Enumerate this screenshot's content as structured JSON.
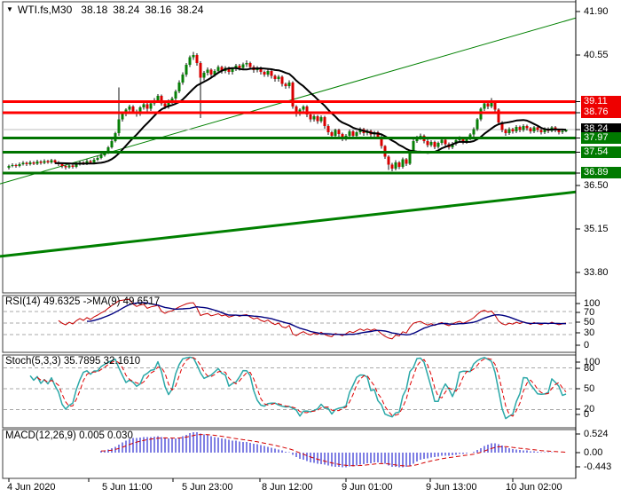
{
  "header": {
    "dropdown_icon": "▼",
    "symbol_period": "WTI.fs,M30",
    "open": "38.18",
    "high": "38.24",
    "low": "38.16",
    "close": "38.24"
  },
  "colors": {
    "bull": "#077f07",
    "bear": "#d90000",
    "wick": "#101010",
    "ma": "#000000",
    "resistance": "#ff0000",
    "support": "#007400",
    "trend": "#008000",
    "current_line": "#bcbcbc",
    "grid": "#a9a9a9",
    "rsi_line": "#c80000",
    "rsi_ma": "#00007f",
    "stoch_k": "#2ba8a8",
    "stoch_d": "#e00000",
    "macd_hist": "#0000c8",
    "macd_signal": "#d40000",
    "tag_current_bg": "#000000",
    "tag_res_bg": "#ee0000",
    "tag_sup_bg": "#007a00",
    "border": "#3c3c3c",
    "text": "#000000"
  },
  "chart_data": {
    "type": "candlestick+indicators",
    "symbol": "WTI.fs",
    "period": "M30",
    "price_axis_ticks": [
      "41.90",
      "40.55",
      "36.50",
      "35.15",
      "33.80"
    ],
    "price_axis_tick_values": [
      41.9,
      40.55,
      36.5,
      35.15,
      33.8
    ],
    "price_tags": [
      {
        "text": "39.11",
        "value": 39.11,
        "kind": "resistance"
      },
      {
        "text": "38.76",
        "value": 38.76,
        "kind": "resistance"
      },
      {
        "text": "38.24",
        "value": 38.24,
        "kind": "current"
      },
      {
        "text": "37.97",
        "value": 37.97,
        "kind": "support"
      },
      {
        "text": "37.54",
        "value": 37.54,
        "kind": "support"
      },
      {
        "text": "36.89",
        "value": 36.89,
        "kind": "support"
      }
    ],
    "h_lines": [
      {
        "value": 39.11,
        "kind": "resistance"
      },
      {
        "value": 38.76,
        "kind": "resistance"
      },
      {
        "value": 38.24,
        "kind": "current"
      },
      {
        "value": 37.97,
        "kind": "support"
      },
      {
        "value": 37.54,
        "kind": "support"
      },
      {
        "value": 36.89,
        "kind": "support"
      }
    ],
    "trend_lines": [
      {
        "price_start": 36.55,
        "price_end": 41.7,
        "width": 1
      },
      {
        "price_start": 34.3,
        "price_end": 36.3,
        "width": 3
      }
    ],
    "ma_period": 14,
    "time_labels": [
      "4 Jun 2020",
      "5 Jun 11:00",
      "5 Jun 23:00",
      "8 Jun 12:00",
      "9 Jun 01:00",
      "9 Jun 13:00",
      "10 Jun 02:00"
    ],
    "indicators": {
      "rsi": {
        "label": "RSI(14) 49.6325  ->MA(9) 49.6517",
        "period": 14,
        "ma_period": 9,
        "axis_ticks": [
          "100",
          "70",
          "50",
          "30",
          "0"
        ],
        "grid_levels": [
          70,
          50,
          30
        ],
        "value": 49.6325,
        "ma_value": 49.6517
      },
      "stoch": {
        "label": "Stoch(5,3,3) 35.7895 32.1610",
        "k": 5,
        "slowing": 3,
        "d": 3,
        "axis_ticks": [
          "100",
          "80",
          "50",
          "20",
          "0"
        ],
        "grid_levels": [
          80,
          50,
          20
        ],
        "k_value": 35.7895,
        "d_value": 32.161
      },
      "macd": {
        "label": "MACD(12,26,9) 0.005 0.030",
        "fast": 12,
        "slow": 26,
        "signal": 9,
        "axis_ticks": [
          "0.524",
          "0.00",
          "-0.443"
        ],
        "axis_tick_values": [
          0.524,
          0.0,
          -0.443
        ]
      }
    },
    "candles": [
      [
        37.05,
        37.15,
        37.0,
        37.1
      ],
      [
        37.1,
        37.19,
        37.06,
        37.14
      ],
      [
        37.14,
        37.18,
        37.05,
        37.1
      ],
      [
        37.1,
        37.21,
        37.06,
        37.16
      ],
      [
        37.16,
        37.26,
        37.12,
        37.2
      ],
      [
        37.2,
        37.24,
        37.11,
        37.16
      ],
      [
        37.16,
        37.27,
        37.12,
        37.22
      ],
      [
        37.22,
        37.26,
        37.13,
        37.18
      ],
      [
        37.18,
        37.3,
        37.14,
        37.24
      ],
      [
        37.24,
        37.28,
        37.15,
        37.2
      ],
      [
        37.2,
        37.31,
        37.16,
        37.26
      ],
      [
        37.26,
        37.3,
        37.17,
        37.22
      ],
      [
        37.22,
        37.33,
        37.18,
        37.28
      ],
      [
        37.28,
        37.31,
        37.17,
        37.22
      ],
      [
        37.22,
        37.26,
        37.11,
        37.16
      ],
      [
        37.16,
        37.2,
        37.04,
        37.1
      ],
      [
        37.1,
        37.15,
        37.0,
        37.06
      ],
      [
        37.06,
        37.17,
        37.02,
        37.12
      ],
      [
        37.12,
        37.16,
        37.03,
        37.08
      ],
      [
        37.08,
        37.21,
        37.04,
        37.16
      ],
      [
        37.16,
        37.27,
        37.12,
        37.22
      ],
      [
        37.22,
        37.26,
        37.13,
        37.18
      ],
      [
        37.18,
        37.31,
        37.14,
        37.26
      ],
      [
        37.26,
        37.3,
        37.16,
        37.22
      ],
      [
        37.22,
        37.35,
        37.18,
        37.3
      ],
      [
        37.3,
        37.41,
        37.26,
        37.36
      ],
      [
        37.36,
        37.49,
        37.32,
        37.44
      ],
      [
        37.44,
        37.57,
        37.4,
        37.52
      ],
      [
        37.52,
        37.73,
        37.48,
        37.68
      ],
      [
        37.68,
        37.93,
        37.64,
        37.88
      ],
      [
        37.88,
        38.17,
        37.84,
        38.12
      ],
      [
        38.12,
        39.55,
        38.05,
        38.55
      ],
      [
        38.55,
        38.78,
        38.48,
        38.72
      ],
      [
        38.72,
        38.9,
        38.65,
        38.85
      ],
      [
        38.85,
        39.01,
        38.78,
        38.95
      ],
      [
        38.95,
        38.99,
        38.73,
        38.8
      ],
      [
        38.8,
        38.86,
        38.64,
        38.72
      ],
      [
        38.72,
        38.97,
        38.66,
        38.92
      ],
      [
        38.92,
        39.08,
        38.85,
        39.02
      ],
      [
        39.02,
        39.07,
        38.8,
        38.88
      ],
      [
        38.88,
        39.1,
        38.82,
        39.05
      ],
      [
        39.05,
        39.21,
        38.98,
        39.15
      ],
      [
        39.15,
        39.34,
        39.08,
        39.28
      ],
      [
        39.28,
        39.33,
        38.98,
        39.05
      ],
      [
        39.05,
        39.1,
        38.87,
        38.95
      ],
      [
        38.95,
        39.17,
        38.88,
        39.12
      ],
      [
        39.12,
        39.26,
        39.04,
        39.2
      ],
      [
        39.2,
        39.47,
        39.14,
        39.42
      ],
      [
        39.42,
        39.76,
        39.36,
        39.7
      ],
      [
        39.7,
        40.01,
        39.63,
        39.95
      ],
      [
        39.95,
        40.3,
        39.88,
        40.25
      ],
      [
        40.25,
        40.54,
        40.18,
        40.48
      ],
      [
        40.48,
        40.65,
        40.4,
        40.55
      ],
      [
        40.55,
        40.6,
        40.22,
        40.3
      ],
      [
        40.3,
        40.36,
        38.6,
        39.85
      ],
      [
        39.85,
        40.06,
        39.76,
        40.0
      ],
      [
        40.0,
        40.16,
        39.92,
        40.1
      ],
      [
        40.1,
        40.14,
        39.88,
        39.95
      ],
      [
        39.95,
        40.11,
        39.88,
        40.05
      ],
      [
        40.05,
        40.24,
        39.98,
        40.18
      ],
      [
        40.18,
        40.22,
        39.97,
        40.05
      ],
      [
        40.05,
        40.21,
        39.98,
        40.15
      ],
      [
        40.15,
        40.19,
        39.95,
        40.02
      ],
      [
        40.02,
        40.17,
        39.95,
        40.12
      ],
      [
        40.12,
        40.28,
        40.05,
        40.22
      ],
      [
        40.22,
        40.27,
        40.07,
        40.15
      ],
      [
        40.15,
        40.31,
        40.08,
        40.26
      ],
      [
        40.26,
        40.38,
        40.18,
        40.3
      ],
      [
        40.3,
        40.34,
        40.1,
        40.18
      ],
      [
        40.18,
        40.23,
        40.0,
        40.08
      ],
      [
        40.08,
        40.21,
        40.01,
        40.15
      ],
      [
        40.15,
        40.19,
        39.94,
        40.02
      ],
      [
        40.02,
        40.07,
        39.87,
        39.95
      ],
      [
        39.95,
        40.1,
        39.88,
        40.05
      ],
      [
        40.05,
        40.09,
        39.82,
        39.9
      ],
      [
        39.9,
        39.95,
        39.72,
        39.8
      ],
      [
        39.8,
        39.93,
        39.73,
        39.88
      ],
      [
        39.88,
        39.92,
        39.57,
        39.65
      ],
      [
        39.65,
        39.7,
        39.5,
        39.58
      ],
      [
        39.58,
        39.76,
        39.52,
        39.7
      ],
      [
        39.7,
        39.74,
        38.88,
        38.95
      ],
      [
        38.95,
        39.0,
        38.64,
        38.72
      ],
      [
        38.72,
        38.9,
        38.66,
        38.85
      ],
      [
        38.85,
        39.0,
        38.78,
        38.95
      ],
      [
        38.95,
        38.99,
        38.62,
        38.7
      ],
      [
        38.7,
        38.75,
        38.47,
        38.55
      ],
      [
        38.55,
        38.7,
        38.48,
        38.65
      ],
      [
        38.65,
        38.69,
        38.42,
        38.5
      ],
      [
        38.5,
        38.67,
        38.44,
        38.62
      ],
      [
        38.62,
        38.66,
        38.27,
        38.35
      ],
      [
        38.35,
        38.4,
        38.07,
        38.15
      ],
      [
        38.15,
        38.2,
        37.97,
        38.05
      ],
      [
        38.05,
        38.27,
        37.99,
        38.22
      ],
      [
        38.22,
        38.26,
        38.02,
        38.1
      ],
      [
        38.1,
        38.14,
        37.88,
        37.95
      ],
      [
        37.95,
        38.1,
        37.89,
        38.05
      ],
      [
        38.05,
        38.23,
        37.99,
        38.18
      ],
      [
        38.18,
        38.22,
        37.98,
        38.05
      ],
      [
        38.05,
        38.2,
        37.99,
        38.15
      ],
      [
        38.15,
        38.3,
        38.09,
        38.25
      ],
      [
        38.25,
        38.29,
        38.05,
        38.12
      ],
      [
        38.12,
        38.25,
        38.06,
        38.2
      ],
      [
        38.2,
        38.24,
        38.01,
        38.08
      ],
      [
        38.08,
        38.2,
        38.02,
        38.15
      ],
      [
        38.15,
        38.19,
        37.95,
        38.02
      ],
      [
        38.02,
        38.06,
        37.65,
        37.72
      ],
      [
        37.72,
        37.76,
        37.33,
        37.4
      ],
      [
        37.4,
        37.44,
        36.98,
        37.15
      ],
      [
        37.15,
        37.2,
        36.94,
        37.02
      ],
      [
        37.02,
        37.28,
        36.97,
        37.22
      ],
      [
        37.22,
        37.26,
        37.01,
        37.08
      ],
      [
        37.08,
        37.37,
        37.03,
        37.32
      ],
      [
        37.32,
        37.36,
        37.11,
        37.18
      ],
      [
        37.18,
        37.6,
        37.13,
        37.55
      ],
      [
        37.55,
        37.93,
        37.5,
        37.88
      ],
      [
        37.88,
        38.04,
        37.82,
        37.98
      ],
      [
        37.98,
        38.11,
        37.92,
        38.05
      ],
      [
        38.05,
        38.09,
        37.81,
        37.88
      ],
      [
        37.88,
        37.93,
        37.68,
        37.75
      ],
      [
        37.75,
        37.91,
        37.7,
        37.85
      ],
      [
        37.85,
        37.89,
        37.63,
        37.7
      ],
      [
        37.7,
        37.87,
        37.65,
        37.82
      ],
      [
        37.82,
        37.97,
        37.76,
        37.92
      ],
      [
        37.92,
        37.96,
        37.71,
        37.78
      ],
      [
        37.78,
        37.83,
        37.61,
        37.68
      ],
      [
        37.68,
        37.85,
        37.63,
        37.8
      ],
      [
        37.8,
        37.95,
        37.74,
        37.9
      ],
      [
        37.9,
        38.03,
        37.84,
        37.98
      ],
      [
        37.98,
        38.02,
        37.78,
        37.85
      ],
      [
        37.85,
        38.0,
        37.8,
        37.95
      ],
      [
        37.95,
        38.13,
        37.9,
        38.08
      ],
      [
        38.08,
        38.3,
        38.02,
        38.25
      ],
      [
        38.25,
        38.6,
        38.2,
        38.55
      ],
      [
        38.55,
        38.93,
        38.5,
        38.88
      ],
      [
        38.88,
        39.1,
        38.82,
        39.05
      ],
      [
        39.05,
        39.09,
        38.87,
        38.95
      ],
      [
        38.95,
        39.22,
        38.9,
        39.08
      ],
      [
        39.08,
        39.12,
        38.78,
        38.85
      ],
      [
        38.85,
        38.9,
        38.38,
        38.45
      ],
      [
        38.45,
        38.5,
        38.15,
        38.22
      ],
      [
        38.22,
        38.27,
        38.05,
        38.12
      ],
      [
        38.12,
        38.3,
        38.07,
        38.25
      ],
      [
        38.25,
        38.29,
        38.11,
        38.18
      ],
      [
        38.18,
        38.37,
        38.13,
        38.32
      ],
      [
        38.32,
        38.36,
        38.15,
        38.22
      ],
      [
        38.22,
        38.4,
        38.17,
        38.35
      ],
      [
        38.35,
        38.39,
        38.21,
        38.28
      ],
      [
        38.28,
        38.32,
        38.11,
        38.18
      ],
      [
        38.18,
        38.35,
        38.13,
        38.3
      ],
      [
        38.3,
        38.34,
        38.15,
        38.22
      ],
      [
        38.22,
        38.26,
        38.08,
        38.15
      ],
      [
        38.15,
        38.31,
        38.1,
        38.26
      ],
      [
        38.26,
        38.3,
        38.13,
        38.2
      ],
      [
        38.2,
        38.35,
        38.15,
        38.3
      ],
      [
        38.3,
        38.34,
        38.16,
        38.22
      ],
      [
        38.22,
        38.26,
        38.09,
        38.16
      ],
      [
        38.16,
        38.25,
        38.1,
        38.2
      ],
      [
        38.18,
        38.24,
        38.16,
        38.24
      ]
    ]
  }
}
